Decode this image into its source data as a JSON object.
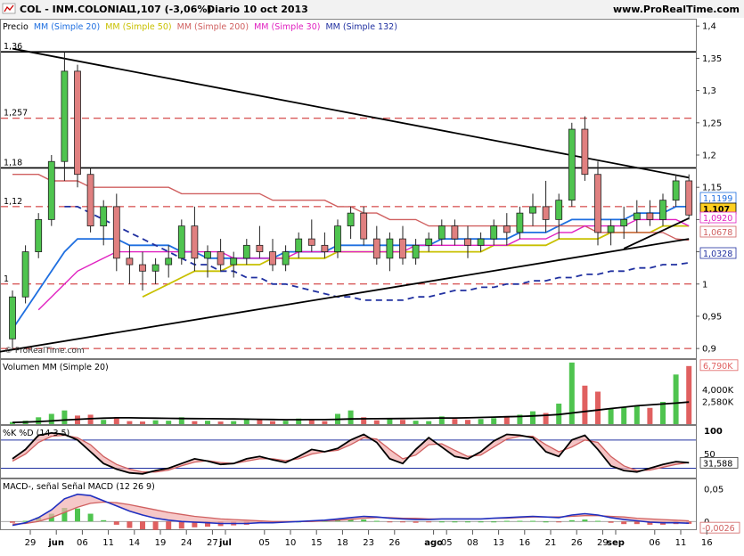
{
  "header": {
    "symbol": "COL - INM.COLONIAL",
    "quote": "1,107 (-3,06%)",
    "period": "Diario  10 oct 2013",
    "site": "www.ProRealTime.com"
  },
  "price_panel": {
    "legend": [
      {
        "text": "Precio",
        "color": "#000000"
      },
      {
        "text": "MM (Simple 20)",
        "color": "#1f6fe0"
      },
      {
        "text": "MM (Simple 50)",
        "color": "#c8c000"
      },
      {
        "text": "MM (Simple 200)",
        "color": "#d06060"
      },
      {
        "text": "MM (Simple 30)",
        "color": "#e020c0"
      },
      {
        "text": "MM (Simple 132)",
        "color": "#2030a0"
      }
    ],
    "y_ticks": [
      "1,4",
      "1,35",
      "1,3",
      "1,25",
      "1,2",
      "1,15",
      "1,1",
      "1,05",
      "1",
      "0,95",
      "0,9"
    ],
    "level_labels": [
      "1,36",
      "1,257",
      "1,18",
      "1,12",
      "1"
    ],
    "right_badges": [
      {
        "text": "1,1199",
        "bg": "#ffffff",
        "fg": "#1f6fe0"
      },
      {
        "text": "1,107",
        "bg": "#ffd020",
        "fg": "#000000"
      },
      {
        "text": "1,0920",
        "bg": "#ffffff",
        "fg": "#e020c0"
      },
      {
        "text": "1,0678",
        "bg": "#ffffff",
        "fg": "#d06060"
      },
      {
        "text": "1,0328",
        "bg": "#ffffff",
        "fg": "#2030a0"
      }
    ],
    "copyright": "© ProRealTime.com"
  },
  "volume_panel": {
    "legend": "Volumen MM (Simple 20)",
    "y_ticks": [
      "4,000K",
      "2,580K"
    ],
    "badge": "6,790K"
  },
  "stoch_panel": {
    "legend": "%K %D (14 3 5)",
    "y_ticks": [
      "100",
      "50"
    ],
    "badge": "31,588"
  },
  "macd_panel": {
    "legend": "MACD-, señal Señal MACD (12 26 9)",
    "y_ticks": [
      "0,05",
      "0"
    ],
    "badge": "-0,0026"
  },
  "x_axis": {
    "labels": [
      {
        "t": "29",
        "i": 0,
        "bold": false
      },
      {
        "t": "jun",
        "i": 2,
        "bold": true
      },
      {
        "t": "06",
        "i": 4,
        "bold": false
      },
      {
        "t": "11",
        "i": 6,
        "bold": false
      },
      {
        "t": "14",
        "i": 8,
        "bold": false
      },
      {
        "t": "19",
        "i": 10,
        "bold": false
      },
      {
        "t": "24",
        "i": 12,
        "bold": false
      },
      {
        "t": "27",
        "i": 14,
        "bold": false
      },
      {
        "t": "jul",
        "i": 15,
        "bold": true
      },
      {
        "t": "05",
        "i": 18,
        "bold": false
      },
      {
        "t": "10",
        "i": 20,
        "bold": false
      },
      {
        "t": "15",
        "i": 22,
        "bold": false
      },
      {
        "t": "18",
        "i": 24,
        "bold": false
      },
      {
        "t": "23",
        "i": 26,
        "bold": false
      },
      {
        "t": "26",
        "i": 28,
        "bold": false
      },
      {
        "t": "ago",
        "i": 31,
        "bold": true
      },
      {
        "t": "05",
        "i": 32,
        "bold": false
      },
      {
        "t": "08",
        "i": 34,
        "bold": false
      },
      {
        "t": "13",
        "i": 36,
        "bold": false
      },
      {
        "t": "16",
        "i": 38,
        "bold": false
      },
      {
        "t": "21",
        "i": 40,
        "bold": false
      },
      {
        "t": "26",
        "i": 42,
        "bold": false
      },
      {
        "t": "29",
        "i": 44,
        "bold": false
      },
      {
        "t": "sep",
        "i": 45,
        "bold": true
      },
      {
        "t": "06",
        "i": 48,
        "bold": false
      },
      {
        "t": "11",
        "i": 50,
        "bold": false
      },
      {
        "t": "16",
        "i": 52,
        "bold": false
      }
    ]
  },
  "chart_data": {
    "type": "candlestick",
    "price_ylim": [
      0.885,
      1.41
    ],
    "horizontal_levels": [
      {
        "value": 1.36,
        "style": "solid",
        "color": "#000000"
      },
      {
        "value": 1.257,
        "style": "dashed",
        "color": "#cc2020"
      },
      {
        "value": 1.18,
        "style": "solid",
        "color": "#000000"
      },
      {
        "value": 1.12,
        "style": "dashed",
        "color": "#cc2020"
      },
      {
        "value": 1.0,
        "style": "dashed",
        "color": "#cc2020"
      },
      {
        "value": 0.9,
        "style": "dashed",
        "color": "#cc2020"
      }
    ],
    "trendlines": [
      {
        "from": [
          0,
          1.365
        ],
        "to": [
          52,
          1.165
        ]
      },
      {
        "from": [
          -1,
          0.895
        ],
        "to": [
          52,
          1.07
        ]
      },
      {
        "from": [
          47,
          1.055
        ],
        "to": [
          52,
          1.102
        ]
      }
    ],
    "candles_ohlc": [
      [
        0.915,
        0.99,
        0.9,
        0.98
      ],
      [
        0.98,
        1.06,
        0.97,
        1.05
      ],
      [
        1.05,
        1.11,
        1.04,
        1.1
      ],
      [
        1.1,
        1.2,
        1.09,
        1.19
      ],
      [
        1.19,
        1.36,
        1.16,
        1.33
      ],
      [
        1.33,
        1.34,
        1.15,
        1.17
      ],
      [
        1.17,
        1.18,
        1.08,
        1.09
      ],
      [
        1.09,
        1.13,
        1.06,
        1.12
      ],
      [
        1.12,
        1.14,
        1.02,
        1.04
      ],
      [
        1.04,
        1.06,
        1.0,
        1.03
      ],
      [
        1.03,
        1.05,
        0.99,
        1.02
      ],
      [
        1.02,
        1.04,
        1.0,
        1.03
      ],
      [
        1.03,
        1.06,
        1.01,
        1.04
      ],
      [
        1.04,
        1.1,
        1.03,
        1.09
      ],
      [
        1.09,
        1.12,
        1.02,
        1.04
      ],
      [
        1.04,
        1.06,
        1.01,
        1.05
      ],
      [
        1.05,
        1.07,
        1.02,
        1.03
      ],
      [
        1.03,
        1.05,
        1.01,
        1.04
      ],
      [
        1.04,
        1.07,
        1.03,
        1.06
      ],
      [
        1.06,
        1.09,
        1.04,
        1.05
      ],
      [
        1.05,
        1.07,
        1.02,
        1.03
      ],
      [
        1.03,
        1.06,
        1.02,
        1.05
      ],
      [
        1.05,
        1.08,
        1.04,
        1.07
      ],
      [
        1.07,
        1.1,
        1.05,
        1.06
      ],
      [
        1.06,
        1.08,
        1.04,
        1.05
      ],
      [
        1.05,
        1.1,
        1.04,
        1.09
      ],
      [
        1.09,
        1.12,
        1.07,
        1.11
      ],
      [
        1.11,
        1.12,
        1.06,
        1.07
      ],
      [
        1.07,
        1.09,
        1.03,
        1.04
      ],
      [
        1.04,
        1.08,
        1.02,
        1.07
      ],
      [
        1.07,
        1.09,
        1.03,
        1.04
      ],
      [
        1.04,
        1.07,
        1.03,
        1.06
      ],
      [
        1.06,
        1.08,
        1.05,
        1.07
      ],
      [
        1.07,
        1.1,
        1.06,
        1.09
      ],
      [
        1.09,
        1.1,
        1.06,
        1.07
      ],
      [
        1.07,
        1.09,
        1.04,
        1.06
      ],
      [
        1.06,
        1.08,
        1.05,
        1.07
      ],
      [
        1.07,
        1.1,
        1.06,
        1.09
      ],
      [
        1.09,
        1.11,
        1.06,
        1.08
      ],
      [
        1.08,
        1.12,
        1.07,
        1.11
      ],
      [
        1.11,
        1.14,
        1.09,
        1.12
      ],
      [
        1.12,
        1.16,
        1.08,
        1.1
      ],
      [
        1.1,
        1.14,
        1.07,
        1.13
      ],
      [
        1.13,
        1.25,
        1.12,
        1.24
      ],
      [
        1.24,
        1.26,
        1.16,
        1.17
      ],
      [
        1.17,
        1.19,
        1.06,
        1.08
      ],
      [
        1.08,
        1.1,
        1.06,
        1.09
      ],
      [
        1.09,
        1.12,
        1.07,
        1.1
      ],
      [
        1.1,
        1.13,
        1.08,
        1.11
      ],
      [
        1.11,
        1.13,
        1.09,
        1.1
      ],
      [
        1.1,
        1.14,
        1.09,
        1.13
      ],
      [
        1.13,
        1.17,
        1.12,
        1.16
      ],
      [
        1.16,
        1.17,
        1.1,
        1.107
      ]
    ],
    "ma_series": [
      {
        "name": "MM (Simple 20)",
        "color": "#1f6fe0",
        "dash": false,
        "values": [
          0.93,
          0.96,
          0.99,
          1.02,
          1.05,
          1.07,
          1.07,
          1.07,
          1.07,
          1.06,
          1.06,
          1.06,
          1.06,
          1.05,
          1.05,
          1.04,
          1.04,
          1.04,
          1.04,
          1.04,
          1.04,
          1.05,
          1.05,
          1.05,
          1.05,
          1.06,
          1.06,
          1.06,
          1.06,
          1.06,
          1.06,
          1.06,
          1.06,
          1.07,
          1.07,
          1.07,
          1.07,
          1.07,
          1.07,
          1.08,
          1.08,
          1.08,
          1.09,
          1.1,
          1.1,
          1.1,
          1.1,
          1.1,
          1.11,
          1.11,
          1.11,
          1.12,
          1.12
        ]
      },
      {
        "name": "MM (Simple 50)",
        "color": "#c8c000",
        "dash": false,
        "values": [
          null,
          null,
          null,
          null,
          null,
          null,
          null,
          null,
          null,
          null,
          0.98,
          0.99,
          1.0,
          1.01,
          1.02,
          1.02,
          1.02,
          1.03,
          1.03,
          1.03,
          1.04,
          1.04,
          1.04,
          1.04,
          1.04,
          1.05,
          1.05,
          1.05,
          1.05,
          1.05,
          1.05,
          1.05,
          1.05,
          1.05,
          1.05,
          1.05,
          1.05,
          1.06,
          1.06,
          1.06,
          1.06,
          1.06,
          1.07,
          1.07,
          1.07,
          1.07,
          1.08,
          1.08,
          1.08,
          1.08,
          1.09,
          1.09,
          1.09
        ]
      },
      {
        "name": "MM (Simple 200)",
        "color": "#d06060",
        "dash": false,
        "values": [
          1.17,
          1.17,
          1.17,
          1.16,
          1.16,
          1.16,
          1.15,
          1.15,
          1.15,
          1.15,
          1.15,
          1.15,
          1.15,
          1.14,
          1.14,
          1.14,
          1.14,
          1.14,
          1.14,
          1.14,
          1.13,
          1.13,
          1.13,
          1.13,
          1.13,
          1.12,
          1.12,
          1.11,
          1.11,
          1.1,
          1.1,
          1.1,
          1.09,
          1.09,
          1.09,
          1.09,
          1.09,
          1.09,
          1.09,
          1.09,
          1.09,
          1.09,
          1.09,
          1.09,
          1.09,
          1.08,
          1.08,
          1.08,
          1.08,
          1.08,
          1.08,
          1.07,
          1.068
        ]
      },
      {
        "name": "MM (Simple 30)",
        "color": "#e020c0",
        "dash": false,
        "values": [
          null,
          null,
          0.96,
          0.98,
          1.0,
          1.02,
          1.03,
          1.04,
          1.05,
          1.05,
          1.05,
          1.05,
          1.05,
          1.05,
          1.05,
          1.05,
          1.05,
          1.04,
          1.04,
          1.04,
          1.04,
          1.04,
          1.05,
          1.05,
          1.05,
          1.05,
          1.05,
          1.05,
          1.05,
          1.05,
          1.05,
          1.06,
          1.06,
          1.06,
          1.06,
          1.06,
          1.06,
          1.06,
          1.06,
          1.07,
          1.07,
          1.07,
          1.08,
          1.08,
          1.09,
          1.09,
          1.09,
          1.09,
          1.1,
          1.1,
          1.1,
          1.1,
          1.09
        ]
      },
      {
        "name": "MM (Simple 132)",
        "color": "#2030a0",
        "dash": true,
        "values": [
          null,
          null,
          null,
          null,
          1.12,
          1.12,
          1.11,
          1.1,
          1.09,
          1.08,
          1.07,
          1.06,
          1.05,
          1.04,
          1.03,
          1.03,
          1.02,
          1.02,
          1.01,
          1.01,
          1.0,
          1.0,
          0.995,
          0.99,
          0.985,
          0.98,
          0.98,
          0.975,
          0.975,
          0.975,
          0.975,
          0.98,
          0.98,
          0.985,
          0.99,
          0.99,
          0.995,
          0.995,
          1.0,
          1.0,
          1.005,
          1.005,
          1.01,
          1.01,
          1.015,
          1.015,
          1.02,
          1.02,
          1.025,
          1.025,
          1.03,
          1.03,
          1.033
        ]
      }
    ],
    "volume_ylim": [
      0,
      7500
    ],
    "volume_k": [
      250,
      400,
      800,
      1200,
      1600,
      1000,
      1100,
      500,
      700,
      350,
      300,
      450,
      400,
      800,
      350,
      400,
      300,
      350,
      600,
      500,
      350,
      400,
      650,
      500,
      350,
      1200,
      1600,
      800,
      450,
      700,
      500,
      400,
      350,
      900,
      600,
      500,
      600,
      700,
      900,
      1100,
      1500,
      1300,
      2400,
      7200,
      4500,
      3800,
      1800,
      2000,
      2200,
      1900,
      2600,
      5800,
      6790
    ],
    "volume_ma_k": [
      200,
      240,
      300,
      380,
      480,
      560,
      640,
      700,
      740,
      740,
      720,
      700,
      680,
      660,
      650,
      640,
      620,
      600,
      580,
      560,
      540,
      520,
      520,
      530,
      530,
      560,
      600,
      620,
      640,
      650,
      660,
      680,
      700,
      720,
      720,
      740,
      780,
      820,
      860,
      900,
      960,
      1030,
      1120,
      1300,
      1480,
      1650,
      1820,
      1980,
      2150,
      2250,
      2350,
      2460,
      2580
    ],
    "stochastic": {
      "ylim": [
        0,
        110
      ],
      "k": [
        40,
        60,
        90,
        95,
        92,
        80,
        55,
        30,
        18,
        10,
        8,
        15,
        20,
        30,
        40,
        35,
        28,
        30,
        40,
        45,
        38,
        32,
        45,
        60,
        55,
        62,
        80,
        92,
        75,
        40,
        30,
        60,
        85,
        65,
        45,
        40,
        55,
        78,
        92,
        90,
        85,
        55,
        45,
        80,
        90,
        60,
        25,
        15,
        12,
        20,
        28,
        34,
        31.588
      ],
      "d": [
        35,
        50,
        75,
        88,
        90,
        85,
        70,
        45,
        28,
        18,
        12,
        12,
        16,
        25,
        33,
        36,
        32,
        30,
        35,
        40,
        40,
        36,
        40,
        50,
        55,
        58,
        70,
        85,
        82,
        60,
        40,
        48,
        70,
        72,
        58,
        45,
        48,
        65,
        82,
        88,
        88,
        70,
        55,
        65,
        80,
        75,
        45,
        25,
        15,
        16,
        22,
        28,
        32
      ]
    },
    "macd": {
      "ylim": [
        -0.012,
        0.065
      ],
      "macd": [
        -0.006,
        -0.002,
        0.006,
        0.018,
        0.035,
        0.042,
        0.04,
        0.032,
        0.024,
        0.016,
        0.01,
        0.005,
        0.002,
        0.0,
        -0.001,
        -0.002,
        -0.003,
        -0.003,
        -0.003,
        -0.002,
        -0.002,
        -0.001,
        0.0,
        0.001,
        0.002,
        0.004,
        0.006,
        0.008,
        0.007,
        0.005,
        0.004,
        0.003,
        0.003,
        0.004,
        0.004,
        0.004,
        0.004,
        0.005,
        0.006,
        0.007,
        0.008,
        0.007,
        0.006,
        0.01,
        0.012,
        0.01,
        0.006,
        0.003,
        0.001,
        -0.001,
        -0.002,
        -0.002,
        -0.0026
      ],
      "signal": [
        -0.004,
        -0.003,
        0.0,
        0.006,
        0.014,
        0.022,
        0.028,
        0.03,
        0.029,
        0.026,
        0.022,
        0.018,
        0.014,
        0.011,
        0.008,
        0.006,
        0.004,
        0.003,
        0.002,
        0.001,
        0.0,
        0.0,
        0.0,
        0.0,
        0.001,
        0.002,
        0.003,
        0.005,
        0.006,
        0.006,
        0.005,
        0.005,
        0.004,
        0.004,
        0.004,
        0.004,
        0.004,
        0.005,
        0.005,
        0.006,
        0.007,
        0.007,
        0.007,
        0.008,
        0.009,
        0.009,
        0.008,
        0.007,
        0.005,
        0.004,
        0.003,
        0.002,
        0.001
      ]
    }
  }
}
